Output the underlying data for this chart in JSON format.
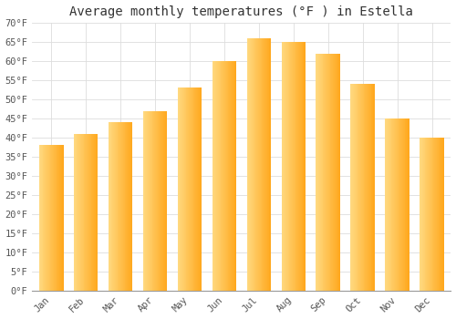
{
  "title": "Average monthly temperatures (°F ) in Estella",
  "months": [
    "Jan",
    "Feb",
    "Mar",
    "Apr",
    "May",
    "Jun",
    "Jul",
    "Aug",
    "Sep",
    "Oct",
    "Nov",
    "Dec"
  ],
  "values": [
    38,
    41,
    44,
    47,
    53,
    60,
    66,
    65,
    62,
    54,
    45,
    40
  ],
  "bar_color_top": "#FFA500",
  "bar_color_bottom": "#FFD580",
  "ylim": [
    0,
    70
  ],
  "yticks": [
    0,
    5,
    10,
    15,
    20,
    25,
    30,
    35,
    40,
    45,
    50,
    55,
    60,
    65,
    70
  ],
  "ytick_labels": [
    "0°F",
    "5°F",
    "10°F",
    "15°F",
    "20°F",
    "25°F",
    "30°F",
    "35°F",
    "40°F",
    "45°F",
    "50°F",
    "55°F",
    "60°F",
    "65°F",
    "70°F"
  ],
  "bg_color": "#FFFFFF",
  "grid_color": "#DDDDDD",
  "title_fontsize": 10,
  "tick_fontsize": 7.5,
  "font_color": "#555555",
  "title_color": "#333333",
  "bar_width": 0.7
}
